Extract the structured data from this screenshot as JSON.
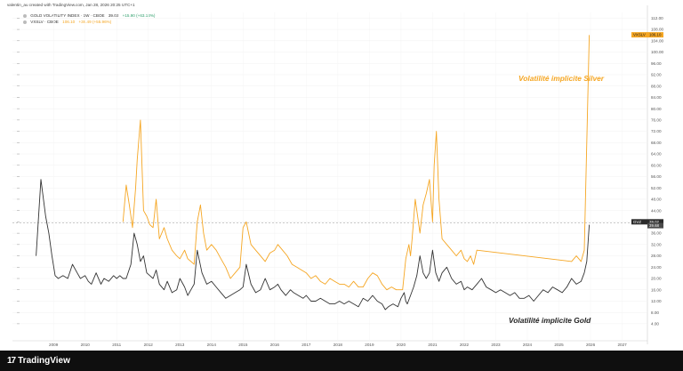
{
  "header": {
    "text": "valentin_au created with TradingView.com, Jan 28, 2026 20:25 UTC+1"
  },
  "legend": {
    "gold": {
      "name": "GOLD VOLATILITY INDEX · 1W · CBOE",
      "value": "39.02",
      "change": "+15.90 (+63.13%)"
    },
    "silver": {
      "symbol": "VXSLV · CBOE",
      "value": "106.10",
      "change": "+38.49 (+55.96%)"
    }
  },
  "annotations": {
    "silver": "Volatilité implicite Silver",
    "gold": "Volatilité implicite Gold"
  },
  "footer": {
    "brand": "TradingView",
    "logo_icon": "tradingview-logo-icon"
  },
  "colors": {
    "silver": "#f5a623",
    "gold": "#333333",
    "background": "#ffffff",
    "footer": "#0f0f0f"
  },
  "chart_data": {
    "type": "line",
    "title": "",
    "xlabel": "",
    "ylabel": "",
    "xlim": [
      2007.7,
      2027.8
    ],
    "ylim": [
      -2,
      114
    ],
    "x_ticks": [
      2009,
      2010,
      2011,
      2012,
      2013,
      2014,
      2015,
      2016,
      2017,
      2018,
      2019,
      2020,
      2021,
      2022,
      2023,
      2024,
      2025,
      2026,
      2027
    ],
    "y_ticks": [
      4,
      8,
      12,
      16,
      20,
      24,
      28,
      32,
      36,
      40,
      44,
      48,
      52,
      56,
      60,
      64,
      68,
      72,
      76,
      80,
      84,
      88,
      92,
      96,
      100,
      104,
      108,
      112
    ],
    "y_tick_labels": [
      "4.00",
      "8.00",
      "12.00",
      "16.00",
      "20.00",
      "24.00",
      "28.00",
      "32.00",
      "36.00",
      "40.00",
      "44.00",
      "48.00",
      "52.00",
      "56.00",
      "60.00",
      "64.00",
      "68.00",
      "72.00",
      "76.00",
      "80.00",
      "84.00",
      "88.00",
      "92.00",
      "96.00",
      "100.00",
      "104.00",
      "108.00",
      "112.00"
    ],
    "grid": true,
    "legend_placement": "top-left",
    "last_value_badges": [
      {
        "symbol": "VXSLV",
        "value": "106.10",
        "series": "silver"
      },
      {
        "symbol": "GVZ",
        "value": "39.02",
        "series": "gold"
      },
      {
        "symbol": "",
        "value": "39.68",
        "series": "crosshair"
      }
    ],
    "series": [
      {
        "key": "gold",
        "x": [
          2008.45,
          2008.6,
          2008.75,
          2008.85,
          2008.95,
          2009.05,
          2009.15,
          2009.3,
          2009.45,
          2009.6,
          2009.75,
          2009.85,
          2010.0,
          2010.1,
          2010.2,
          2010.35,
          2010.5,
          2010.6,
          2010.75,
          2010.9,
          2011.0,
          2011.1,
          2011.2,
          2011.3,
          2011.45,
          2011.55,
          2011.65,
          2011.75,
          2011.85,
          2011.95,
          2012.05,
          2012.15,
          2012.25,
          2012.35,
          2012.5,
          2012.6,
          2012.75,
          2012.9,
          2013.0,
          2013.15,
          2013.25,
          2013.35,
          2013.45,
          2013.55,
          2013.7,
          2013.85,
          2014.0,
          2014.15,
          2014.3,
          2014.45,
          2014.6,
          2014.75,
          2014.9,
          2015.0,
          2015.1,
          2015.25,
          2015.4,
          2015.55,
          2015.7,
          2015.85,
          2016.0,
          2016.1,
          2016.2,
          2016.35,
          2016.5,
          2016.6,
          2016.75,
          2016.9,
          2017.0,
          2017.15,
          2017.3,
          2017.45,
          2017.6,
          2017.75,
          2017.9,
          2018.05,
          2018.2,
          2018.35,
          2018.5,
          2018.65,
          2018.8,
          2018.95,
          2019.1,
          2019.25,
          2019.4,
          2019.5,
          2019.6,
          2019.75,
          2019.9,
          2020.0,
          2020.1,
          2020.15,
          2020.2,
          2020.3,
          2020.4,
          2020.5,
          2020.6,
          2020.7,
          2020.8,
          2020.9,
          2021.0,
          2021.1,
          2021.2,
          2021.3,
          2021.45,
          2021.6,
          2021.75,
          2021.9,
          2022.0,
          2022.1,
          2022.25,
          2022.4,
          2022.55,
          2022.7,
          2022.85,
          2023.0,
          2023.15,
          2023.3,
          2023.45,
          2023.6,
          2023.75,
          2023.9,
          2024.05,
          2024.2,
          2024.35,
          2024.5,
          2024.65,
          2024.8,
          2024.95,
          2025.1,
          2025.25,
          2025.4,
          2025.55,
          2025.7,
          2025.8,
          2025.88,
          2025.96
        ],
        "values": [
          28,
          55,
          42,
          36,
          28,
          21,
          20,
          21,
          20,
          25,
          22,
          20,
          21,
          19,
          18,
          22,
          18,
          20,
          19,
          21,
          20,
          21,
          20,
          20,
          25,
          36,
          32,
          26,
          28,
          22,
          21,
          20,
          23,
          18,
          16,
          19,
          15,
          16,
          20,
          17,
          14,
          16,
          18,
          30,
          22,
          18,
          19,
          17,
          15,
          13,
          14,
          15,
          16,
          17,
          25,
          18,
          15,
          16,
          20,
          16,
          17,
          18,
          16,
          14,
          16,
          15,
          14,
          13,
          14,
          12,
          12,
          13,
          12,
          11,
          11,
          12,
          11,
          12,
          11,
          10,
          13,
          12,
          14,
          12,
          11,
          9,
          10,
          11,
          10,
          13,
          15,
          12,
          11,
          14,
          17,
          21,
          28,
          22,
          20,
          22,
          30,
          22,
          19,
          22,
          24,
          20,
          18,
          19,
          16,
          17,
          16,
          18,
          20,
          17,
          16,
          15,
          16,
          15,
          14,
          15,
          13,
          13,
          14,
          12,
          14,
          16,
          15,
          17,
          16,
          15,
          17,
          20,
          18,
          19,
          22,
          26,
          39
        ]
      },
      {
        "key": "silver",
        "x": [
          2011.2,
          2011.3,
          2011.4,
          2011.5,
          2011.6,
          2011.65,
          2011.75,
          2011.85,
          2011.95,
          2012.05,
          2012.15,
          2012.25,
          2012.35,
          2012.5,
          2012.6,
          2012.75,
          2012.9,
          2013.0,
          2013.15,
          2013.25,
          2013.35,
          2013.45,
          2013.55,
          2013.65,
          2013.75,
          2013.85,
          2014.0,
          2014.15,
          2014.3,
          2014.45,
          2014.6,
          2014.75,
          2014.9,
          2015.0,
          2015.1,
          2015.25,
          2015.4,
          2015.55,
          2015.7,
          2015.85,
          2016.0,
          2016.1,
          2016.25,
          2016.4,
          2016.55,
          2016.7,
          2016.85,
          2017.0,
          2017.15,
          2017.3,
          2017.45,
          2017.6,
          2017.75,
          2017.9,
          2018.05,
          2018.2,
          2018.35,
          2018.5,
          2018.65,
          2018.8,
          2018.95,
          2019.1,
          2019.25,
          2019.4,
          2019.55,
          2019.7,
          2019.85,
          2020.0,
          2020.05,
          2020.15,
          2020.25,
          2020.3,
          2020.35,
          2020.45,
          2020.55,
          2020.6,
          2020.7,
          2020.8,
          2020.9,
          2021.0,
          2021.05,
          2021.12,
          2021.2,
          2021.3,
          2021.45,
          2021.6,
          2021.75,
          2021.9,
          2022.0,
          2022.1,
          2022.2,
          2022.3,
          2022.4,
          2025.4,
          2025.55,
          2025.7,
          2025.8,
          2025.96
        ],
        "values": [
          40,
          53,
          46,
          38,
          52,
          62,
          76,
          44,
          42,
          39,
          38,
          48,
          34,
          38,
          34,
          30,
          28,
          27,
          30,
          27,
          26,
          25,
          40,
          46,
          36,
          30,
          32,
          30,
          27,
          24,
          20,
          22,
          24,
          38,
          40,
          32,
          30,
          28,
          26,
          29,
          30,
          32,
          30,
          28,
          25,
          24,
          23,
          22,
          20,
          21,
          19,
          18,
          20,
          19,
          18,
          18,
          17,
          19,
          17,
          17,
          20,
          22,
          21,
          18,
          16,
          17,
          16,
          16,
          16,
          27,
          32,
          28,
          34,
          48,
          40,
          36,
          46,
          50,
          55,
          40,
          60,
          72,
          48,
          34,
          32,
          30,
          28,
          30,
          27,
          26,
          28,
          25,
          30,
          26,
          28,
          26,
          30,
          106
        ]
      }
    ]
  }
}
